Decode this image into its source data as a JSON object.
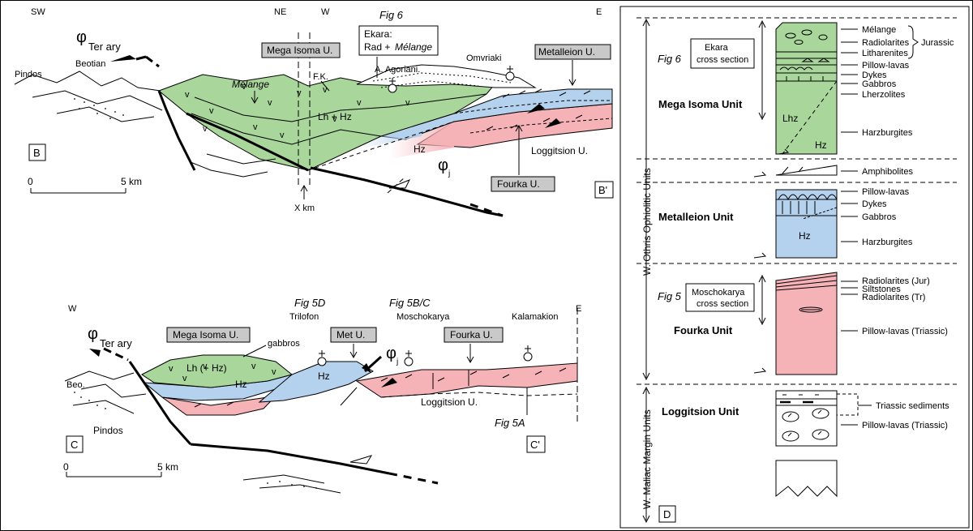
{
  "section_b": {
    "sw": "SW",
    "ne": "NE",
    "w": "W",
    "e": "E",
    "phi": "φ",
    "tertiary": "Ter ary",
    "pindos": "Pindos",
    "beotian": "Beotian",
    "melange": "Mélange",
    "fk": "F.K.",
    "mega_isoma": "Mega Isoma U.",
    "metalleion": "Metalleion U.",
    "fig6": "Fig 6",
    "ekara_line1": "Ekara:",
    "ekara_line2a": "Rad + ",
    "ekara_line2b": "Mélange",
    "a_agoriani": "A. Agoriani.",
    "omvriaki": "Omvriaki",
    "lh_hz": "Lh + Hz",
    "hz": "Hz",
    "loggitsion": "Loggitsion U.",
    "fourka": "Fourka U.",
    "phi_j": "φ",
    "j_sub": "j",
    "label_b": "B",
    "label_b2": "B'",
    "scale_0": "0",
    "scale_5": "5 km",
    "x_km": "X km"
  },
  "section_c": {
    "w": "W",
    "e": "E",
    "phi": "φ",
    "tertiary": "Ter ary",
    "fig5d": "Fig 5D",
    "trilofon": "Trilofon",
    "fig5bc": "Fig 5B/C",
    "moschokarya": "Moschokarya",
    "kalamakion": "Kalamakion",
    "mega_isoma": "Mega Isoma U.",
    "met": "Met U.",
    "fourka": "Fourka U.",
    "gabbros": "gabbros",
    "lh_hz": "Lh (+ Hz)",
    "hz1": "Hz",
    "hz2": "Hz",
    "beo": "Beo.",
    "pindos": "Pindos",
    "loggitsion": "Loggitsion U.",
    "fig5a": "Fig 5A",
    "phi_j": "φ",
    "j_sub": "j",
    "label_c": "C",
    "label_c2": "C'",
    "scale_0": "0",
    "scale_5": "5 km"
  },
  "column_d": {
    "label_d": "D",
    "ophiolitic_units": "W. Othris Ophiolitic Units",
    "margin_units": "W. Maliac Margin Units",
    "fig6": "Fig 6",
    "ekara_box1": "Ekara",
    "ekara_box2": "cross section",
    "mega_isoma": "Mega Isoma Unit",
    "lhz": "Lhz",
    "hz_green": "Hz",
    "mega_labels": [
      "Mélange",
      "Radiolarites",
      "Litharenites",
      "Pillow-lavas",
      "Dykes",
      "Gabbros",
      "Lherzolites",
      "Harzburgites"
    ],
    "jurassic": "Jurassic",
    "amphibolites": "Amphibolites",
    "metalleion": "Metalleion Unit",
    "hz_blue": "Hz",
    "metalleion_labels": [
      "Pillow-lavas",
      "Dykes",
      "Gabbros",
      "Harzburgites"
    ],
    "fig5": "Fig 5",
    "mosch_box1": "Moschokarya",
    "mosch_box2": "cross section",
    "fourka": "Fourka Unit",
    "fourka_labels": [
      "Radiolarites (Jur)",
      "Siltstones",
      "Radiolarites (Tr)",
      "Pillow-lavas (Triassic)"
    ],
    "loggitsion": "Loggitsion Unit",
    "loggitsion_labels": [
      "Triassic sediments",
      "Pillow-lavas (Triassic)"
    ]
  },
  "colors": {
    "green": "#a9d69a",
    "blue": "#b4d1ee",
    "pink": "#f5b3b7",
    "grey": "#c9c9c9"
  }
}
